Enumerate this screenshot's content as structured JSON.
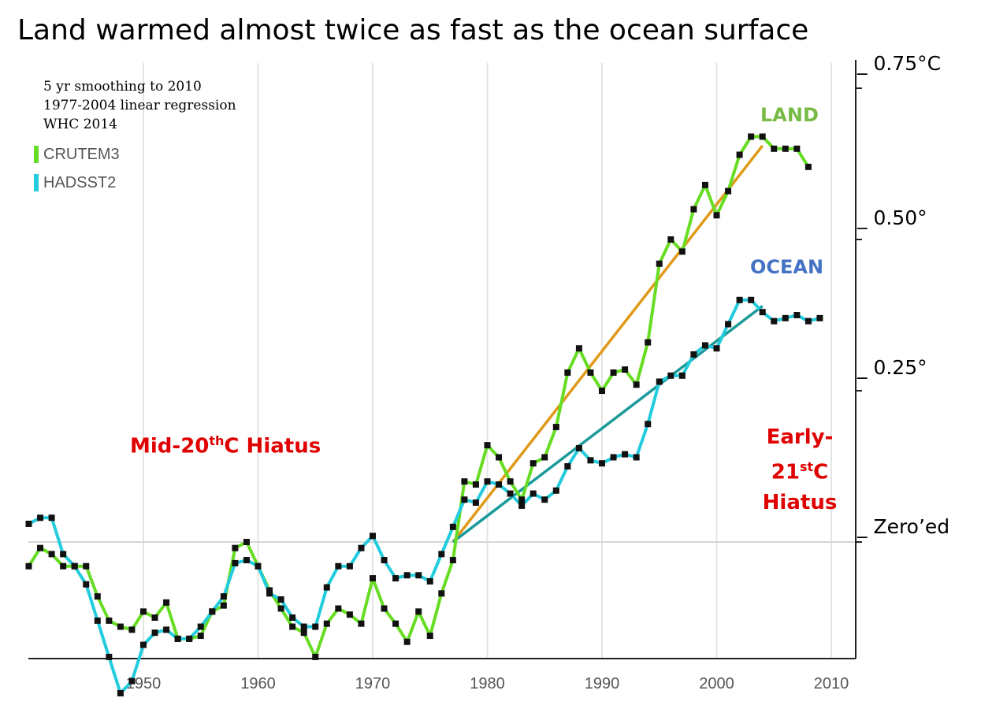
{
  "title": "Land warmed almost twice as fast as the ocean surface",
  "notes": [
    "5 yr smoothing to 2010",
    "1977-2004 linear regression",
    "WHC 2014"
  ],
  "hiatus_mid": {
    "prefix": "Mid-20",
    "sup": "th",
    "suffix": "C Hiatus"
  },
  "hiatus_early": {
    "line1": "Early-",
    "line2_prefix": "21",
    "line2_sup": "st",
    "line2_suffix": "C",
    "line3": "Hiatus"
  },
  "labels": {
    "land": "LAND",
    "ocean": "OCEAN"
  },
  "colors": {
    "land": "#66dd22",
    "ocean": "#22ccdd",
    "land_trend": "#e09a1a",
    "ocean_trend": "#1a9a9a",
    "hiatus": "#e00000",
    "land_label": "#77bb44",
    "ocean_label": "#4472c4"
  },
  "chart_data": {
    "type": "line",
    "title": "Land warmed almost twice as fast as the ocean surface",
    "x_ticks": [
      "1950",
      "1960",
      "1970",
      "1980",
      "1990",
      "2000",
      "2010"
    ],
    "y_ticks": [
      {
        "value": 0.75,
        "label": "_ 0.75°C"
      },
      {
        "value": 0.5,
        "label": "_ 0.50°"
      },
      {
        "value": 0.25,
        "label": "_ 0.25°"
      },
      {
        "value": 0,
        "label": "_ Zero’ed"
      }
    ],
    "xlim": [
      1940,
      2011
    ],
    "ylim": [
      -0.2,
      0.8
    ],
    "series": [
      {
        "name": "CRUTEM3",
        "x": [
          1940,
          1941,
          1942,
          1943,
          1944,
          1945,
          1946,
          1947,
          1948,
          1949,
          1950,
          1951,
          1952,
          1953,
          1954,
          1955,
          1956,
          1957,
          1958,
          1959,
          1960,
          1961,
          1962,
          1963,
          1964,
          1965,
          1966,
          1967,
          1968,
          1969,
          1970,
          1971,
          1972,
          1973,
          1974,
          1975,
          1976,
          1977,
          1978,
          1979,
          1980,
          1981,
          1982,
          1983,
          1984,
          1985,
          1986,
          1987,
          1988,
          1989,
          1990,
          1991,
          1992,
          1993,
          1994,
          1995,
          1996,
          1997,
          1998,
          1999,
          2000,
          2001,
          2002,
          2003,
          2004,
          2005,
          2006,
          2007,
          2008
        ],
        "values": [
          -0.04,
          -0.01,
          -0.02,
          -0.04,
          -0.04,
          -0.04,
          -0.09,
          -0.13,
          -0.14,
          -0.145,
          -0.115,
          -0.125,
          -0.1,
          -0.16,
          -0.16,
          -0.155,
          -0.115,
          -0.105,
          -0.01,
          0.0,
          -0.04,
          -0.08,
          -0.11,
          -0.14,
          -0.15,
          -0.19,
          -0.135,
          -0.11,
          -0.12,
          -0.135,
          -0.06,
          -0.11,
          -0.135,
          -0.165,
          -0.115,
          -0.155,
          -0.085,
          -0.03,
          0.1,
          0.095,
          0.16,
          0.14,
          0.1,
          0.07,
          0.13,
          0.14,
          0.19,
          0.28,
          0.32,
          0.28,
          0.25,
          0.28,
          0.285,
          0.26,
          0.33,
          0.46,
          0.5,
          0.48,
          0.55,
          0.59,
          0.54,
          0.58,
          0.64,
          0.67,
          0.67,
          0.65,
          0.65,
          0.65,
          0.62
        ]
      },
      {
        "name": "HADSST2",
        "x": [
          1940,
          1941,
          1942,
          1943,
          1944,
          1945,
          1946,
          1947,
          1948,
          1949,
          1950,
          1951,
          1952,
          1953,
          1954,
          1955,
          1956,
          1957,
          1958,
          1959,
          1960,
          1961,
          1962,
          1963,
          1964,
          1965,
          1966,
          1967,
          1968,
          1969,
          1970,
          1971,
          1972,
          1973,
          1974,
          1975,
          1976,
          1977,
          1978,
          1979,
          1980,
          1981,
          1982,
          1983,
          1984,
          1985,
          1986,
          1987,
          1988,
          1989,
          1990,
          1991,
          1992,
          1993,
          1994,
          1995,
          1996,
          1997,
          1998,
          1999,
          2000,
          2001,
          2002,
          2003,
          2004,
          2005,
          2006,
          2007,
          2008,
          2009
        ],
        "values": [
          0.03,
          0.04,
          0.04,
          -0.02,
          -0.04,
          -0.07,
          -0.13,
          -0.19,
          -0.25,
          -0.23,
          -0.17,
          -0.15,
          -0.145,
          -0.16,
          -0.16,
          -0.14,
          -0.115,
          -0.09,
          -0.035,
          -0.03,
          -0.04,
          -0.085,
          -0.095,
          -0.125,
          -0.14,
          -0.14,
          -0.075,
          -0.04,
          -0.04,
          -0.01,
          0.01,
          -0.03,
          -0.06,
          -0.055,
          -0.055,
          -0.065,
          -0.02,
          0.025,
          0.07,
          0.065,
          0.1,
          0.095,
          0.08,
          0.06,
          0.08,
          0.07,
          0.085,
          0.125,
          0.155,
          0.135,
          0.13,
          0.14,
          0.145,
          0.14,
          0.195,
          0.265,
          0.275,
          0.275,
          0.31,
          0.325,
          0.32,
          0.36,
          0.4,
          0.4,
          0.38,
          0.365,
          0.37,
          0.375,
          0.365,
          0.37
        ]
      }
    ],
    "trend_lines": [
      {
        "series": "CRUTEM3",
        "x": [
          1977,
          2004
        ],
        "y": [
          0.0,
          0.655
        ]
      },
      {
        "series": "HADSST2",
        "x": [
          1977,
          2004
        ],
        "y": [
          0.0,
          0.39
        ]
      }
    ],
    "legend": {
      "position": "top-left",
      "entries": [
        "CRUTEM3",
        "HADSST2"
      ]
    },
    "grid": {
      "vertical": true,
      "horizontal": false
    }
  }
}
